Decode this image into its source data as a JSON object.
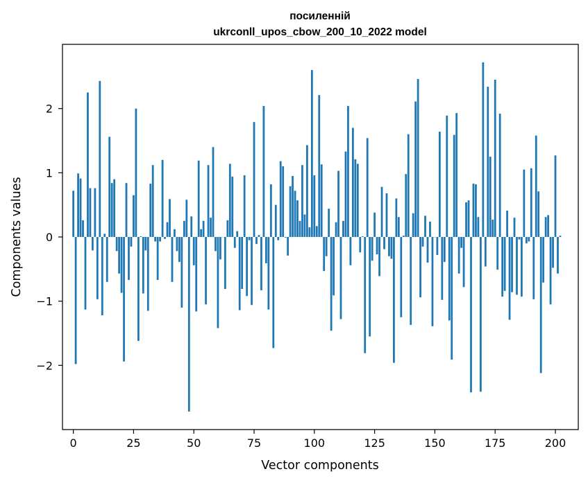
{
  "chart_data": {
    "type": "bar",
    "title_lines": [
      "посиленній",
      "ukrconll_upos_cbow_200_10_2022 model"
    ],
    "xlabel": "Vector components",
    "ylabel": "Components values",
    "xlim": [
      -4.5,
      209.5
    ],
    "ylim": [
      -3.0,
      3.0
    ],
    "xticks": [
      0,
      25,
      50,
      75,
      100,
      125,
      150,
      175,
      200
    ],
    "xtick_labels": [
      "0",
      "25",
      "50",
      "75",
      "100",
      "125",
      "150",
      "175",
      "200"
    ],
    "yticks": [
      -2,
      -1,
      0,
      1,
      2
    ],
    "ytick_labels": [
      "−2",
      "−1",
      "0",
      "1",
      "2"
    ],
    "bar_color": "#1f77b4",
    "grid": false,
    "values": [
      0.72,
      -1.98,
      0.99,
      0.91,
      0.26,
      -1.13,
      2.25,
      0.76,
      -0.21,
      0.76,
      -0.97,
      2.43,
      -1.22,
      0.05,
      -0.7,
      1.56,
      0.84,
      0.9,
      -0.22,
      -0.57,
      -0.87,
      -1.94,
      0.84,
      -0.67,
      -0.15,
      0.65,
      2.0,
      -1.62,
      0.01,
      -0.88,
      -0.21,
      -1.15,
      0.83,
      1.12,
      -0.07,
      -0.67,
      -0.07,
      1.2,
      -0.03,
      0.23,
      0.59,
      -0.7,
      0.12,
      -0.22,
      -0.39,
      -1.1,
      0.25,
      0.58,
      -2.72,
      0.32,
      -0.44,
      -1.16,
      1.19,
      0.12,
      0.25,
      -1.05,
      1.12,
      0.3,
      1.4,
      -0.22,
      -1.42,
      -0.35,
      0.0,
      -0.81,
      0.26,
      1.14,
      0.94,
      -0.17,
      0.09,
      -1.14,
      -0.81,
      0.96,
      -0.92,
      -0.05,
      -1.06,
      1.79,
      -0.11,
      0.03,
      -0.83,
      2.04,
      -0.41,
      -1.13,
      0.82,
      -1.73,
      0.5,
      -0.05,
      1.18,
      1.1,
      -0.01,
      -0.29,
      0.79,
      0.95,
      0.72,
      0.57,
      0.25,
      1.12,
      0.35,
      1.43,
      0.15,
      2.6,
      0.96,
      0.17,
      2.21,
      1.13,
      -0.53,
      -0.3,
      0.44,
      -1.46,
      -0.91,
      0.23,
      1.03,
      -1.28,
      0.25,
      1.33,
      2.04,
      -0.44,
      1.7,
      1.21,
      1.14,
      -0.24,
      0.01,
      -1.81,
      1.54,
      -1.55,
      -0.37,
      0.38,
      -0.27,
      -0.61,
      0.78,
      -0.19,
      0.68,
      -0.3,
      -0.34,
      -1.96,
      0.6,
      0.31,
      -1.25,
      0.02,
      0.98,
      1.6,
      -1.37,
      0.37,
      2.11,
      2.46,
      -0.94,
      -0.15,
      0.33,
      -0.4,
      0.24,
      -1.39,
      0.0,
      -0.28,
      1.64,
      -0.98,
      -0.39,
      1.89,
      -1.3,
      -1.91,
      1.59,
      1.93,
      -0.57,
      -0.17,
      -0.78,
      0.54,
      0.57,
      -2.42,
      0.83,
      0.82,
      0.31,
      -2.41,
      2.72,
      -0.46,
      2.34,
      1.25,
      0.27,
      2.45,
      -0.51,
      1.92,
      -0.93,
      -0.84,
      0.41,
      -1.29,
      -0.86,
      0.3,
      -0.9,
      -0.04,
      -0.93,
      1.05,
      -0.1,
      -0.07,
      1.07,
      -0.97,
      1.58,
      0.71,
      -2.12,
      -0.71,
      0.31,
      0.34,
      -1.05,
      -0.48,
      1.27,
      -0.57,
      0.02
    ]
  }
}
